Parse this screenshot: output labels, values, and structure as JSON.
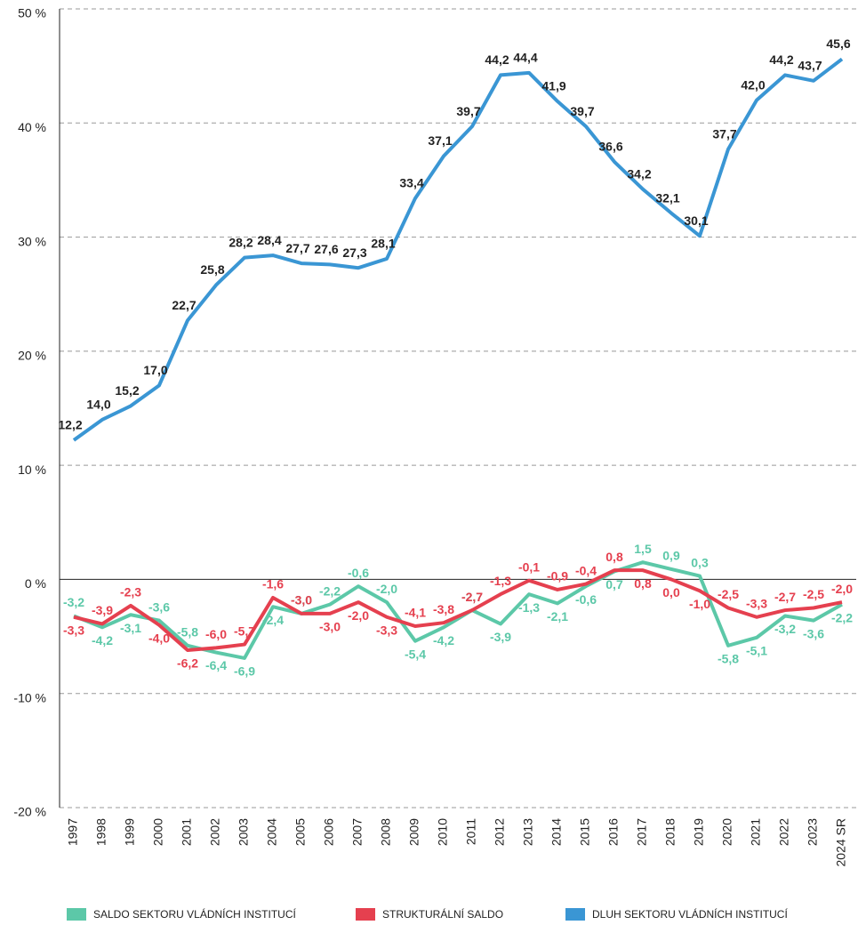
{
  "chart_data": {
    "type": "line",
    "categories": [
      "1997",
      "1998",
      "1999",
      "2000",
      "2001",
      "2002",
      "2003",
      "2004",
      "2005",
      "2006",
      "2007",
      "2008",
      "2009",
      "2010",
      "2011",
      "2012",
      "2013",
      "2014",
      "2015",
      "2016",
      "2017",
      "2018",
      "2019",
      "2020",
      "2021",
      "2022",
      "2023",
      "2024 SR"
    ],
    "series": [
      {
        "name": "SALDO SEKTORU VLÁDNÍCH INSTITUCÍ",
        "color": "#5cc8a8",
        "values": [
          -3.2,
          -4.2,
          -3.1,
          -3.6,
          -5.8,
          -6.4,
          -6.9,
          -2.4,
          -3.0,
          -2.2,
          -0.6,
          -2.0,
          -5.4,
          -4.2,
          -2.7,
          -3.9,
          -1.3,
          -2.1,
          -0.6,
          0.7,
          1.5,
          0.9,
          0.3,
          -5.8,
          -5.1,
          -3.2,
          -3.6,
          -2.2
        ],
        "value_labels": [
          "-3,2",
          "-4,2",
          "-3,1",
          "-3,6",
          "-5,8",
          "-6,4",
          "-6,9",
          "-2,4",
          "-3,0",
          "-2,2",
          "-0,6",
          "-2,0",
          "-5,4",
          "-4,2",
          "-2,7",
          "-3,9",
          "-1,3",
          "-2,1",
          "-0,6",
          "0,7",
          "1,5",
          "0,9",
          "0,3",
          "-5,8",
          "-5,1",
          "-3,2",
          "-3,6",
          "-2,2"
        ]
      },
      {
        "name": "STRUKTURÁLNÍ SALDO",
        "color": "#e5404f",
        "values": [
          -3.3,
          -3.9,
          -2.3,
          -4.0,
          -6.2,
          -6.0,
          -5.7,
          -1.6,
          -3.0,
          -3.0,
          -2.0,
          -3.3,
          -4.1,
          -3.8,
          -2.7,
          -1.3,
          -0.1,
          -0.9,
          -0.4,
          0.8,
          0.8,
          0.0,
          -1.0,
          -2.5,
          -3.3,
          -2.7,
          -2.5,
          -2.0
        ],
        "value_labels": [
          "-3,3",
          "-3,9",
          "-2,3",
          "-4,0",
          "-6,2",
          "-6,0",
          "-5,7",
          "-1,6",
          "-3,0",
          "-3,0",
          "-2,0",
          "-3,3",
          "-4,1",
          "-3,8",
          "-2,7",
          "-1,3",
          "-0,1",
          "-0,9",
          "-0,4",
          "0,8",
          "0,8",
          "0,0",
          "-1,0",
          "-2,5",
          "-3,3",
          "-2,7",
          "-2,5",
          "-2,0"
        ]
      },
      {
        "name": "DLUH SEKTORU VLÁDNÍCH INSTITUCÍ",
        "color": "#3a96d4",
        "values": [
          12.2,
          14.0,
          15.2,
          17.0,
          22.7,
          25.8,
          28.2,
          28.4,
          27.7,
          27.6,
          27.3,
          28.1,
          33.4,
          37.1,
          39.7,
          44.2,
          44.4,
          41.9,
          39.7,
          36.6,
          34.2,
          32.1,
          30.1,
          37.7,
          42.0,
          44.2,
          43.7,
          45.6
        ],
        "value_labels": [
          "12,2",
          "14,0",
          "15,2",
          "17,0",
          "22,7",
          "25,8",
          "28,2",
          "28,4",
          "27,7",
          "27,6",
          "27,3",
          "28,1",
          "33,4",
          "37,1",
          "39,7",
          "44,2",
          "44,4",
          "41,9",
          "39,7",
          "36,6",
          "34,2",
          "32,1",
          "30,1",
          "37,7",
          "42,0",
          "44,2",
          "43,7",
          "45,6"
        ]
      }
    ],
    "ylim": [
      -20,
      50
    ],
    "yticks": [
      {
        "value": -20,
        "label": "-20 %"
      },
      {
        "value": -10,
        "label": "-10 %"
      },
      {
        "value": 0,
        "label": "0 %"
      },
      {
        "value": 10,
        "label": "10 %"
      },
      {
        "value": 20,
        "label": "20 %"
      },
      {
        "value": 30,
        "label": "30 %"
      },
      {
        "value": 40,
        "label": "40 %"
      },
      {
        "value": 50,
        "label": "50 %"
      }
    ],
    "grid": true,
    "legend": "bottom"
  }
}
